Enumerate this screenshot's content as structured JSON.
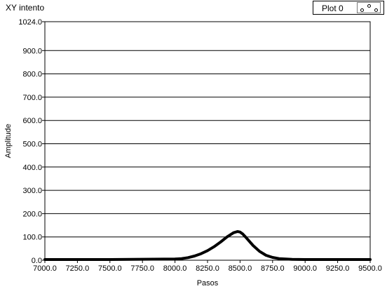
{
  "window": {
    "title": "XY intento"
  },
  "legend": {
    "label": "Plot 0"
  },
  "chart_data": {
    "type": "line",
    "xlabel": "Pasos",
    "ylabel": "Amplitude",
    "xlim": [
      7000,
      9500
    ],
    "ylim": [
      0,
      1024
    ],
    "xticks": [
      "7000.0",
      "7250.0",
      "7500.0",
      "7750.0",
      "8000.0",
      "8250.0",
      "8500.0",
      "8750.0",
      "9000.0",
      "9250.0",
      "9500.0"
    ],
    "yticks": [
      "0.0",
      "100.0",
      "200.0",
      "300.0",
      "400.0",
      "500.0",
      "600.0",
      "700.0",
      "800.0",
      "900.0",
      "1024.0"
    ],
    "grid": "horizontal",
    "series": [
      {
        "name": "Plot 0",
        "color": "#000000",
        "x": [
          7000,
          7500,
          8000,
          8050,
          8100,
          8150,
          8200,
          8250,
          8300,
          8350,
          8400,
          8450,
          8480,
          8500,
          8520,
          8550,
          8600,
          8650,
          8700,
          8750,
          8800,
          8850,
          8900,
          9000,
          9250,
          9500
        ],
        "y": [
          0,
          0,
          2,
          4,
          8,
          15,
          25,
          38,
          55,
          75,
          97,
          115,
          120,
          118,
          110,
          92,
          60,
          35,
          18,
          9,
          4,
          2,
          1,
          0,
          0,
          0
        ]
      }
    ]
  }
}
